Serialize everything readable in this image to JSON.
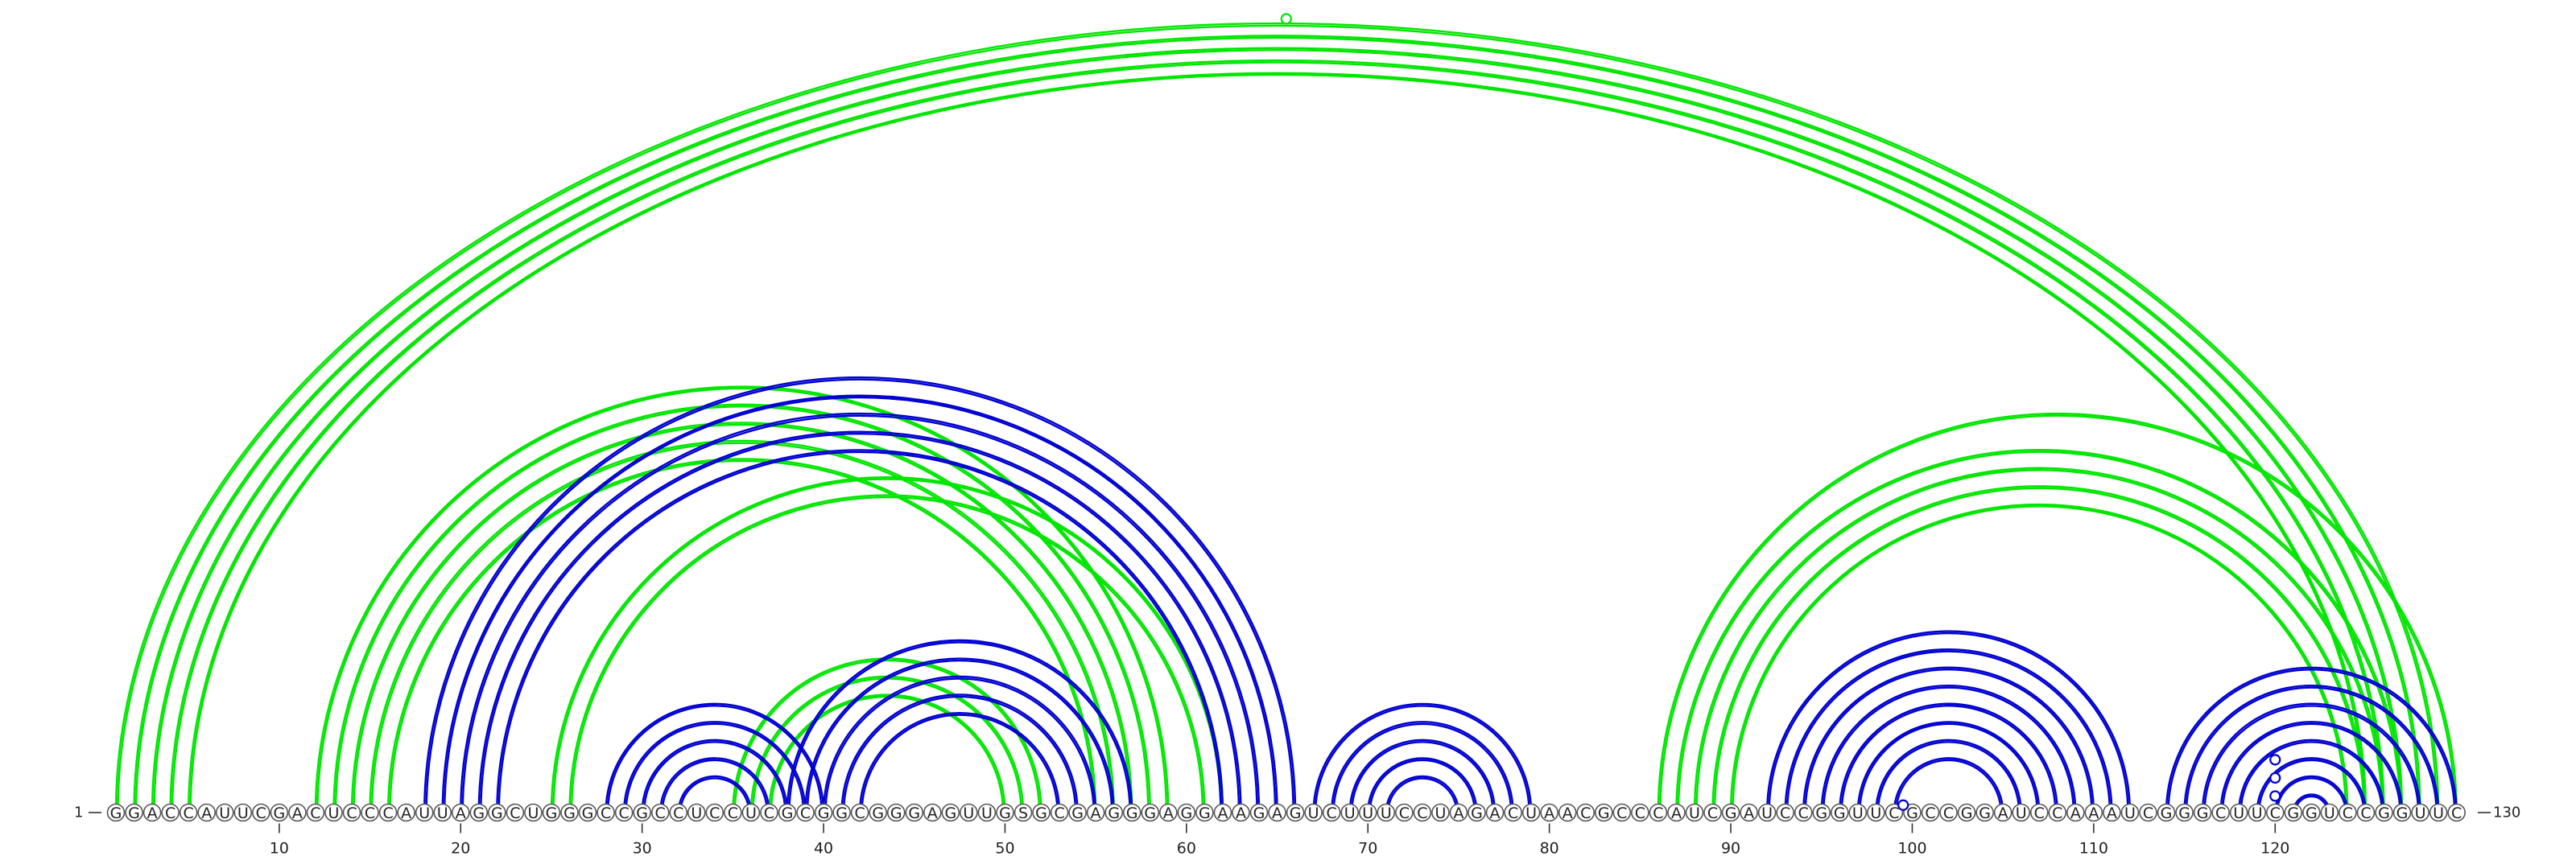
{
  "diagram": {
    "sequence": "GGACCAUUCGACUCCCAUUAGGCUGGGCCGCCUCCUCGCGGCGGGAGUUGSGCGAGGGAGGAAGAGUCUUUCCUAGACUAACGCCCAUCGAUCCGGUUCGCCGGAUCCAAAUCGGGCUUCGGUCCGGUUC",
    "start_label": "1",
    "end_label": "130",
    "ticks": [
      {
        "position": 10,
        "label": "10"
      },
      {
        "position": 20,
        "label": "20"
      },
      {
        "position": 30,
        "label": "30"
      },
      {
        "position": 40,
        "label": "40"
      },
      {
        "position": 50,
        "label": "50"
      },
      {
        "position": 60,
        "label": "60"
      },
      {
        "position": 70,
        "label": "70"
      },
      {
        "position": 80,
        "label": "80"
      },
      {
        "position": 90,
        "label": "90"
      },
      {
        "position": 100,
        "label": "100"
      },
      {
        "position": 110,
        "label": "110"
      },
      {
        "position": 120,
        "label": "120"
      }
    ],
    "colors": {
      "green": "#00e600",
      "blue": "#0000d2"
    },
    "green_pairs": [
      [
        1,
        129
      ],
      [
        2,
        128
      ],
      [
        3,
        127
      ],
      [
        4,
        126
      ],
      [
        5,
        125
      ],
      [
        12,
        59
      ],
      [
        13,
        58
      ],
      [
        14,
        57
      ],
      [
        15,
        56
      ],
      [
        16,
        55
      ],
      [
        35,
        52
      ],
      [
        36,
        51
      ],
      [
        37,
        50
      ],
      [
        86,
        130
      ],
      [
        87,
        127
      ],
      [
        88,
        126
      ],
      [
        89,
        125
      ],
      [
        90,
        124
      ],
      [
        25,
        62
      ],
      [
        26,
        61
      ]
    ],
    "blue_pairs": [
      [
        18,
        66
      ],
      [
        19,
        65
      ],
      [
        20,
        64
      ],
      [
        21,
        63
      ],
      [
        22,
        62
      ],
      [
        28,
        40
      ],
      [
        29,
        39
      ],
      [
        30,
        38
      ],
      [
        31,
        37
      ],
      [
        32,
        36
      ],
      [
        38,
        57
      ],
      [
        39,
        56
      ],
      [
        40,
        55
      ],
      [
        41,
        54
      ],
      [
        42,
        53
      ],
      [
        67,
        79
      ],
      [
        68,
        78
      ],
      [
        69,
        77
      ],
      [
        70,
        76
      ],
      [
        71,
        75
      ],
      [
        92,
        112
      ],
      [
        93,
        111
      ],
      [
        94,
        110
      ],
      [
        95,
        109
      ],
      [
        96,
        108
      ],
      [
        97,
        107
      ],
      [
        98,
        106
      ],
      [
        99,
        105
      ],
      [
        114,
        130
      ],
      [
        115,
        129
      ],
      [
        116,
        128
      ],
      [
        117,
        127
      ],
      [
        118,
        126
      ],
      [
        119,
        125
      ],
      [
        120,
        124
      ],
      [
        121,
        123
      ]
    ],
    "markers": [
      {
        "a": 1,
        "b": 130,
        "color": "green"
      },
      {
        "a": 99,
        "b": 100,
        "color": "blue"
      },
      {
        "a": 118,
        "b": 122,
        "color": "blue"
      },
      {
        "a": 119,
        "b": 121,
        "color": "blue"
      },
      {
        "a": 117,
        "b": 123,
        "color": "blue"
      }
    ]
  }
}
